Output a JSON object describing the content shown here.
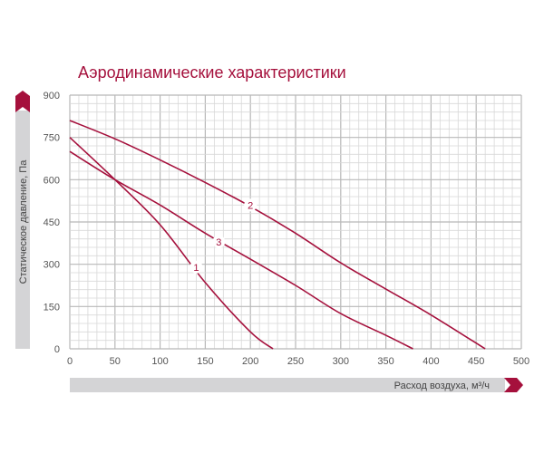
{
  "chart_data": {
    "type": "line",
    "title": "Аэродинамические характеристики",
    "xlabel": "Расход воздуха, м³/ч",
    "ylabel": "Статическое давление, Па",
    "xlim": [
      0,
      500
    ],
    "ylim": [
      0,
      900
    ],
    "xticks": [
      "0",
      "50",
      "100",
      "150",
      "200",
      "250",
      "300",
      "350",
      "400",
      "450",
      "500"
    ],
    "yticks": [
      "0",
      "150",
      "300",
      "450",
      "600",
      "750",
      "900"
    ],
    "grid": true,
    "color": "#a5103c",
    "series": [
      {
        "name": "1",
        "label_at": [
          140,
          290
        ],
        "points": [
          [
            0,
            750
          ],
          [
            50,
            600
          ],
          [
            100,
            440
          ],
          [
            150,
            235
          ],
          [
            200,
            60
          ],
          [
            225,
            0
          ]
        ]
      },
      {
        "name": "2",
        "label_at": [
          200,
          510
        ],
        "points": [
          [
            0,
            810
          ],
          [
            50,
            745
          ],
          [
            100,
            670
          ],
          [
            150,
            590
          ],
          [
            200,
            505
          ],
          [
            250,
            410
          ],
          [
            300,
            305
          ],
          [
            350,
            212
          ],
          [
            400,
            120
          ],
          [
            460,
            0
          ]
        ]
      },
      {
        "name": "3",
        "label_at": [
          165,
          380
        ],
        "points": [
          [
            0,
            700
          ],
          [
            50,
            600
          ],
          [
            100,
            510
          ],
          [
            150,
            410
          ],
          [
            200,
            318
          ],
          [
            250,
            225
          ],
          [
            300,
            125
          ],
          [
            350,
            48
          ],
          [
            380,
            0
          ]
        ]
      }
    ]
  }
}
